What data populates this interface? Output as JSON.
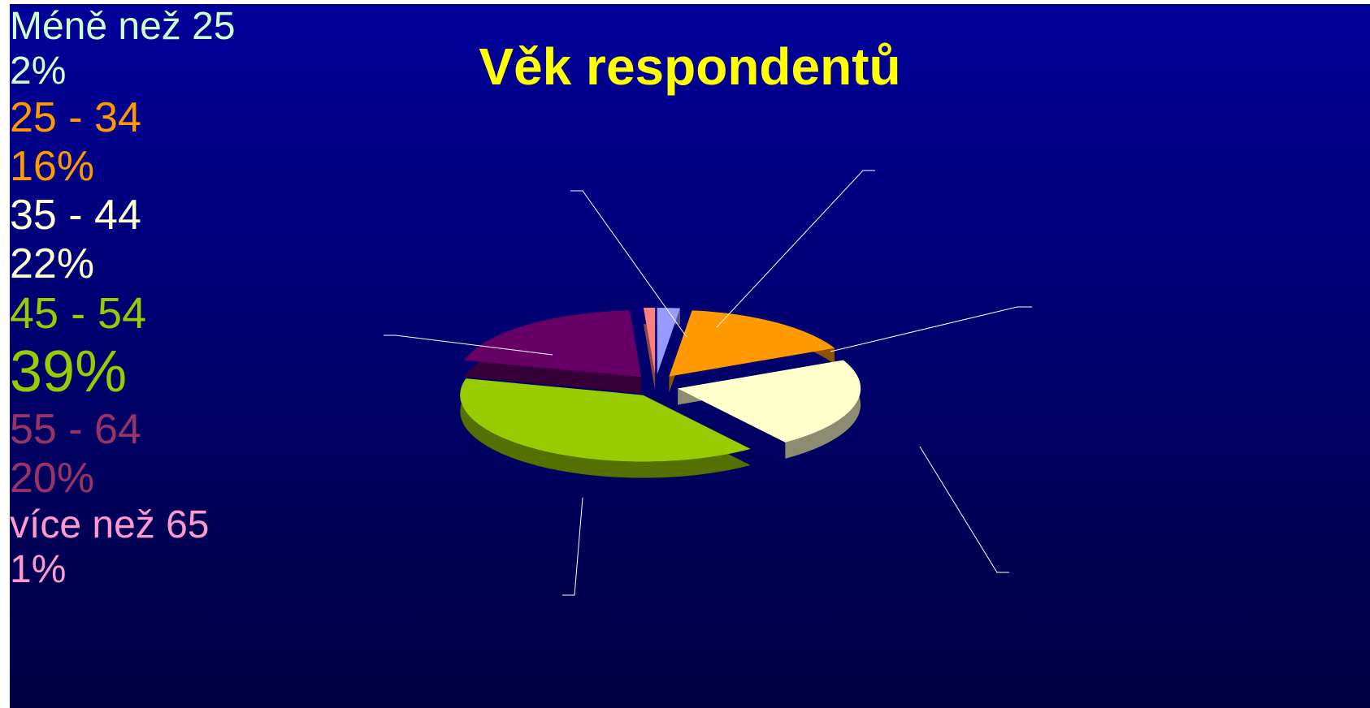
{
  "chart_data": {
    "type": "pie",
    "title": "Věk respondentů",
    "categories": [
      "Méně než 25",
      "25 - 34",
      "35 - 44",
      "45 - 54",
      "55 - 64",
      "více než 65"
    ],
    "values": [
      2,
      16,
      22,
      39,
      20,
      1
    ],
    "value_labels": [
      "2%",
      "16%",
      "22%",
      "39%",
      "20%",
      "1%"
    ],
    "colors": [
      "#9999ff",
      "#ff9900",
      "#ffffcc",
      "#99cc00",
      "#660066",
      "#ff8080"
    ],
    "label_colors": [
      "#ccffcc",
      "#ff9900",
      "#ffffcc",
      "#99cc00",
      "#993366",
      "#ff99cc"
    ]
  }
}
